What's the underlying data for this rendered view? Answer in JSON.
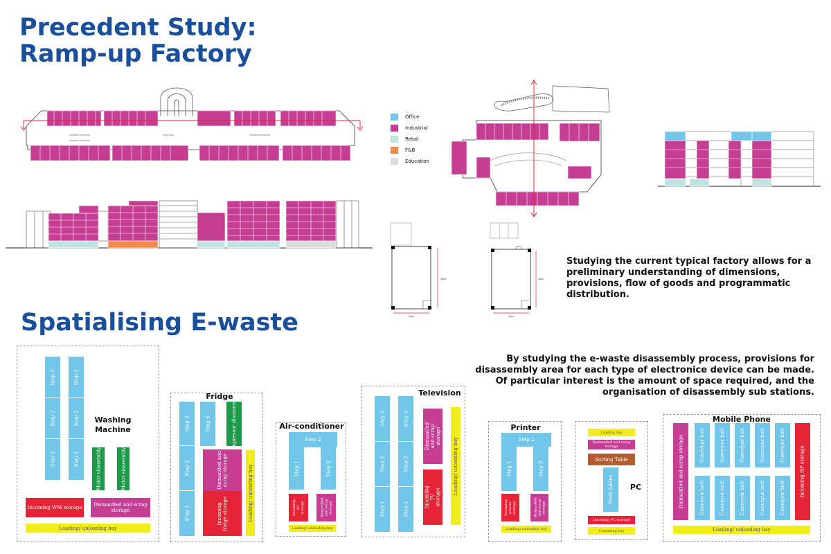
{
  "colors": {
    "blue": "#72c6ea",
    "magenta": "#c63d94",
    "red": "#e62438",
    "green": "#1d9a47",
    "yellow": "#f2ec1d",
    "brown": "#b35c32",
    "title": "#1a4f9c"
  },
  "headings": {
    "precedent_line1": "Precedent Study:",
    "precedent_line2": "Ramp-up Factory",
    "spatialising": "Spatialising E-waste"
  },
  "legend": [
    {
      "label": "Office",
      "color": "#72c6ea"
    },
    {
      "label": "Industrial",
      "color": "#c63d94"
    },
    {
      "label": "Retail",
      "color": "#bfe3e0"
    },
    {
      "label": "F&B",
      "color": "#f08a4b"
    },
    {
      "label": "Education",
      "color": "#dcdcdc"
    }
  ],
  "paragraphs": {
    "study": [
      "Studying the current typical factory allows for a",
      "preliminary understanding of dimensions,",
      "provisions, flow of goods and programmatic",
      "distribution."
    ],
    "ewaste": [
      "By studying the e-waste disassembly process, provisions for",
      "disassembly area for each type of electronice device can be made.",
      "Of particular interest is the amount of space required, and the",
      "organisation of disassembly sub stations."
    ]
  },
  "dimensions": {
    "unit_a_width": "10m",
    "unit_a_depth": "16m",
    "unit_b_width": "10m",
    "unit_b_depth": "16m"
  },
  "plan_labels": {
    "a": "industrial workshop",
    "b": "industrial workshop",
    "c": "ramp area",
    "d": "industrial workshop"
  },
  "panels": {
    "washing_machine": {
      "title": "Washing Machine",
      "step3": "Step 3",
      "step2": "Step 2",
      "step1": "Step 1",
      "motor": "Motor siassembly",
      "incoming": "Incoming WM storage",
      "scrap": "Dismantled and scrap storage",
      "bay": "Loading/ unloading bay"
    },
    "fridge": {
      "title": "Fridge",
      "step3": "Step 3",
      "step2": "Step 2",
      "step1": "Step 1",
      "step4": "Step 4",
      "compressor": "Compressor disassembly",
      "scrap": "Dismantled and scrap storage",
      "incoming": "Incoming fridge storage",
      "bay": "Loading/ unloading bay"
    },
    "aircon": {
      "title": "Air-conditioner",
      "step2": "Step 2",
      "step1": "Step 1",
      "step3": "Step 3",
      "incoming": "Incoming AC storage",
      "scrap": "Dismantled and scrap storage",
      "bay": "Loading/ unloading bay"
    },
    "television": {
      "title": "Television",
      "step3": "Step 3",
      "step2": "Step 2",
      "step1": "Step 1",
      "scrap": "Dismantled and scrap storage",
      "incoming": "Incoming TV storage",
      "bay": "Loading/ unloading bay"
    },
    "printer": {
      "title": "Printer",
      "step2": "Step 2",
      "step1": "Step 1",
      "step3": "Step 3",
      "incoming": "Incoming printer storage",
      "scrap": "Dismantled and scrap storage",
      "bay": "Loading/ unloading bay"
    },
    "pc": {
      "title": "PC",
      "loading": "Loading bay",
      "scrap": "Dismantled and scrap storage",
      "sorting": "Sorting Table",
      "work": "Work tables",
      "incoming": "Incoming PC storage",
      "unloading": "Unloading bay"
    },
    "mobile": {
      "title": "Mobile Phone",
      "scrap": "Dismantled and scrap storage",
      "conveyor": "Conveyor belt",
      "hp": "Incoming HP storage",
      "bay": "Loading/ unloading bay"
    }
  }
}
